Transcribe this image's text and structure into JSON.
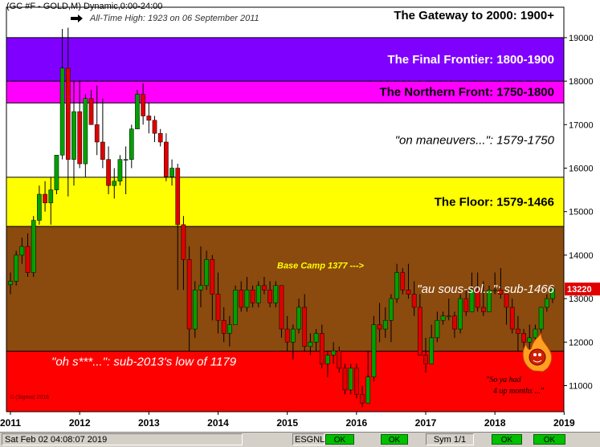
{
  "header": {
    "title": "(GC #F - GOLD,M) Dynamic,0:00-24:00",
    "ath": "All-Time High:  1923 on 06 September 2011"
  },
  "chart_data": {
    "type": "candlestick",
    "x_labels": [
      "2011",
      "2012",
      "2013",
      "2014",
      "2015",
      "2016",
      "2017",
      "2018",
      "2019"
    ],
    "y_ticks": [
      11000,
      12000,
      13000,
      14000,
      15000,
      16000,
      17000,
      18000,
      19000
    ],
    "y_range": [
      10400,
      19700
    ],
    "price_tag": "13220",
    "zones": [
      {
        "label": "The Gateway to 2000:  1900+",
        "from": 19000,
        "to": 19700,
        "color": "#ffffff",
        "text_color": "#000000",
        "italic": false
      },
      {
        "label": "The Final Frontier:  1800-1900",
        "from": 18000,
        "to": 19000,
        "color": "#8000ff",
        "text_color": "#ffffff",
        "italic": false
      },
      {
        "label": "The Northern Front:  1750-1800",
        "from": 17500,
        "to": 18000,
        "color": "#ff00ff",
        "text_color": "#000000",
        "italic": false
      },
      {
        "label": "\"on maneuvers...\":  1579-1750",
        "from": 15790,
        "to": 17500,
        "color": "#ffffff",
        "text_color": "#000000",
        "italic": true
      },
      {
        "label": "The Floor:  1579-1466",
        "from": 14660,
        "to": 15790,
        "color": "#ffff00",
        "text_color": "#000000",
        "italic": false
      },
      {
        "label": "\"au sous-sol...\":  sub-1466",
        "from": 11790,
        "to": 14660,
        "color": "#8b4a0e",
        "text_color": "#ffffff",
        "italic": true
      },
      {
        "label": "\"oh s***...\":  sub-2013's low of 1179",
        "from": 10400,
        "to": 11790,
        "color": "#ff0000",
        "text_color": "#ffffff",
        "italic": true
      }
    ],
    "annotations": {
      "base_camp": "Base Camp 1377 --->",
      "ya_had_line1": "\"So ya had",
      "ya_had_line2": "4 up months ...\"",
      "copyright": "© (Sigma) 2016"
    },
    "candles": [
      {
        "o": 13320,
        "h": 13600,
        "l": 13100,
        "c": 13400
      },
      {
        "o": 13400,
        "h": 14100,
        "l": 13300,
        "c": 14000
      },
      {
        "o": 14000,
        "h": 14400,
        "l": 13800,
        "c": 14200
      },
      {
        "o": 14200,
        "h": 14500,
        "l": 13500,
        "c": 13600
      },
      {
        "o": 13600,
        "h": 14900,
        "l": 13500,
        "c": 14800
      },
      {
        "o": 14800,
        "h": 15600,
        "l": 14700,
        "c": 15400
      },
      {
        "o": 15400,
        "h": 15700,
        "l": 15000,
        "c": 15200
      },
      {
        "o": 15200,
        "h": 15800,
        "l": 14700,
        "c": 15500
      },
      {
        "o": 15500,
        "h": 16300,
        "l": 15400,
        "c": 16300
      },
      {
        "o": 16300,
        "h": 19200,
        "l": 16200,
        "c": 18300
      },
      {
        "o": 18300,
        "h": 19230,
        "l": 15350,
        "c": 16200
      },
      {
        "o": 16200,
        "h": 18000,
        "l": 15600,
        "c": 17300
      },
      {
        "o": 17300,
        "h": 18000,
        "l": 16000,
        "c": 16100
      },
      {
        "o": 16100,
        "h": 17700,
        "l": 15800,
        "c": 17600
      },
      {
        "o": 17600,
        "h": 17800,
        "l": 17000,
        "c": 17000
      },
      {
        "o": 17000,
        "h": 17900,
        "l": 16300,
        "c": 16600
      },
      {
        "o": 16600,
        "h": 17600,
        "l": 16000,
        "c": 16200
      },
      {
        "o": 16200,
        "h": 16500,
        "l": 15400,
        "c": 15600
      },
      {
        "o": 15600,
        "h": 16000,
        "l": 15300,
        "c": 15700
      },
      {
        "o": 15700,
        "h": 16300,
        "l": 15600,
        "c": 16200
      },
      {
        "o": 16200,
        "h": 16500,
        "l": 15400,
        "c": 16200
      },
      {
        "o": 16200,
        "h": 17000,
        "l": 16000,
        "c": 16900
      },
      {
        "o": 16900,
        "h": 17800,
        "l": 16900,
        "c": 17700
      },
      {
        "o": 17700,
        "h": 17950,
        "l": 17000,
        "c": 17200
      },
      {
        "o": 17200,
        "h": 17500,
        "l": 16800,
        "c": 17100
      },
      {
        "o": 17100,
        "h": 17200,
        "l": 16600,
        "c": 16800
      },
      {
        "o": 16800,
        "h": 16900,
        "l": 16500,
        "c": 16600
      },
      {
        "o": 16600,
        "h": 16800,
        "l": 15700,
        "c": 15800
      },
      {
        "o": 15800,
        "h": 16200,
        "l": 15600,
        "c": 16000
      },
      {
        "o": 16000,
        "h": 16100,
        "l": 13200,
        "c": 14700
      },
      {
        "o": 14700,
        "h": 14900,
        "l": 13200,
        "c": 13900
      },
      {
        "o": 13900,
        "h": 14200,
        "l": 11800,
        "c": 12300
      },
      {
        "o": 12300,
        "h": 13400,
        "l": 12100,
        "c": 13200
      },
      {
        "o": 13200,
        "h": 14200,
        "l": 12800,
        "c": 13300
      },
      {
        "o": 13300,
        "h": 14100,
        "l": 13200,
        "c": 13900
      },
      {
        "o": 13900,
        "h": 14000,
        "l": 12500,
        "c": 13100
      },
      {
        "o": 13100,
        "h": 13600,
        "l": 12200,
        "c": 12500
      },
      {
        "o": 12500,
        "h": 12800,
        "l": 12000,
        "c": 12200
      },
      {
        "o": 12200,
        "h": 12600,
        "l": 11900,
        "c": 12400
      },
      {
        "o": 12400,
        "h": 13300,
        "l": 12400,
        "c": 13200
      },
      {
        "o": 13200,
        "h": 13400,
        "l": 12700,
        "c": 12800
      },
      {
        "o": 12800,
        "h": 13500,
        "l": 12700,
        "c": 13200
      },
      {
        "o": 13200,
        "h": 13300,
        "l": 12800,
        "c": 12900
      },
      {
        "o": 12900,
        "h": 13400,
        "l": 12800,
        "c": 13300
      },
      {
        "o": 13300,
        "h": 13500,
        "l": 13100,
        "c": 13200
      },
      {
        "o": 13200,
        "h": 13400,
        "l": 12800,
        "c": 12900
      },
      {
        "o": 12900,
        "h": 13400,
        "l": 12800,
        "c": 13300
      },
      {
        "o": 13300,
        "h": 13300,
        "l": 12100,
        "c": 12300
      },
      {
        "o": 12300,
        "h": 12600,
        "l": 11800,
        "c": 12000
      },
      {
        "o": 12000,
        "h": 12400,
        "l": 11600,
        "c": 12300
      },
      {
        "o": 12300,
        "h": 13000,
        "l": 12200,
        "c": 12800
      },
      {
        "o": 12800,
        "h": 13100,
        "l": 11800,
        "c": 11900
      },
      {
        "o": 11900,
        "h": 12200,
        "l": 11700,
        "c": 12000
      },
      {
        "o": 12000,
        "h": 12300,
        "l": 11800,
        "c": 12200
      },
      {
        "o": 12200,
        "h": 12400,
        "l": 11400,
        "c": 11500
      },
      {
        "o": 11500,
        "h": 11800,
        "l": 11200,
        "c": 11700
      },
      {
        "o": 11700,
        "h": 12000,
        "l": 11500,
        "c": 11800
      },
      {
        "o": 11800,
        "h": 11900,
        "l": 11300,
        "c": 11400
      },
      {
        "o": 11400,
        "h": 11500,
        "l": 10800,
        "c": 10900
      },
      {
        "o": 10900,
        "h": 11500,
        "l": 10800,
        "c": 11400
      },
      {
        "o": 11400,
        "h": 11500,
        "l": 10700,
        "c": 10800
      },
      {
        "o": 10800,
        "h": 11000,
        "l": 10500,
        "c": 10600
      },
      {
        "o": 10600,
        "h": 11800,
        "l": 10600,
        "c": 11200
      },
      {
        "o": 11200,
        "h": 12600,
        "l": 11100,
        "c": 12400
      },
      {
        "o": 12400,
        "h": 12900,
        "l": 12000,
        "c": 12300
      },
      {
        "o": 12300,
        "h": 12800,
        "l": 12100,
        "c": 12500
      },
      {
        "o": 12500,
        "h": 13100,
        "l": 12000,
        "c": 13000
      },
      {
        "o": 13000,
        "h": 13800,
        "l": 12900,
        "c": 13600
      },
      {
        "o": 13600,
        "h": 13700,
        "l": 13100,
        "c": 13200
      },
      {
        "o": 13200,
        "h": 13800,
        "l": 13000,
        "c": 13100
      },
      {
        "o": 13100,
        "h": 13400,
        "l": 12600,
        "c": 12800
      },
      {
        "o": 12800,
        "h": 13100,
        "l": 11700,
        "c": 11700
      },
      {
        "o": 11700,
        "h": 12100,
        "l": 11300,
        "c": 11500
      },
      {
        "o": 11500,
        "h": 12400,
        "l": 11500,
        "c": 12100
      },
      {
        "o": 12100,
        "h": 12700,
        "l": 12000,
        "c": 12500
      },
      {
        "o": 12500,
        "h": 12700,
        "l": 12400,
        "c": 12600
      },
      {
        "o": 12600,
        "h": 13000,
        "l": 12500,
        "c": 12600
      },
      {
        "o": 12600,
        "h": 12700,
        "l": 12100,
        "c": 12300
      },
      {
        "o": 12300,
        "h": 13100,
        "l": 12200,
        "c": 13000
      },
      {
        "o": 13000,
        "h": 13200,
        "l": 12600,
        "c": 12700
      },
      {
        "o": 12700,
        "h": 13600,
        "l": 12700,
        "c": 13200
      },
      {
        "o": 13200,
        "h": 13600,
        "l": 12700,
        "c": 12800
      },
      {
        "o": 12800,
        "h": 13400,
        "l": 12600,
        "c": 12700
      },
      {
        "o": 12700,
        "h": 13300,
        "l": 12700,
        "c": 13200
      },
      {
        "o": 13200,
        "h": 13600,
        "l": 13100,
        "c": 13200
      },
      {
        "o": 13200,
        "h": 13700,
        "l": 13000,
        "c": 13100
      },
      {
        "o": 13100,
        "h": 13100,
        "l": 12400,
        "c": 12800
      },
      {
        "o": 12800,
        "h": 13000,
        "l": 12200,
        "c": 12300
      },
      {
        "o": 12300,
        "h": 12600,
        "l": 11800,
        "c": 12200
      },
      {
        "o": 12200,
        "h": 12300,
        "l": 11600,
        "c": 12000
      },
      {
        "o": 12000,
        "h": 12400,
        "l": 11800,
        "c": 12100
      },
      {
        "o": 12100,
        "h": 12400,
        "l": 12000,
        "c": 12300
      },
      {
        "o": 12300,
        "h": 12800,
        "l": 12000,
        "c": 12800
      },
      {
        "o": 12800,
        "h": 13100,
        "l": 12700,
        "c": 13000
      },
      {
        "o": 13000,
        "h": 13300,
        "l": 12900,
        "c": 13220
      }
    ]
  },
  "status_bar": {
    "datetime": "Sat Feb 02 04:08:07 2019",
    "esgnl_label": "ESGNL:",
    "ok1": "OK",
    "ok2": "OK",
    "sym": "Sym 1/1",
    "ok3": "OK",
    "ok4": "OK"
  }
}
